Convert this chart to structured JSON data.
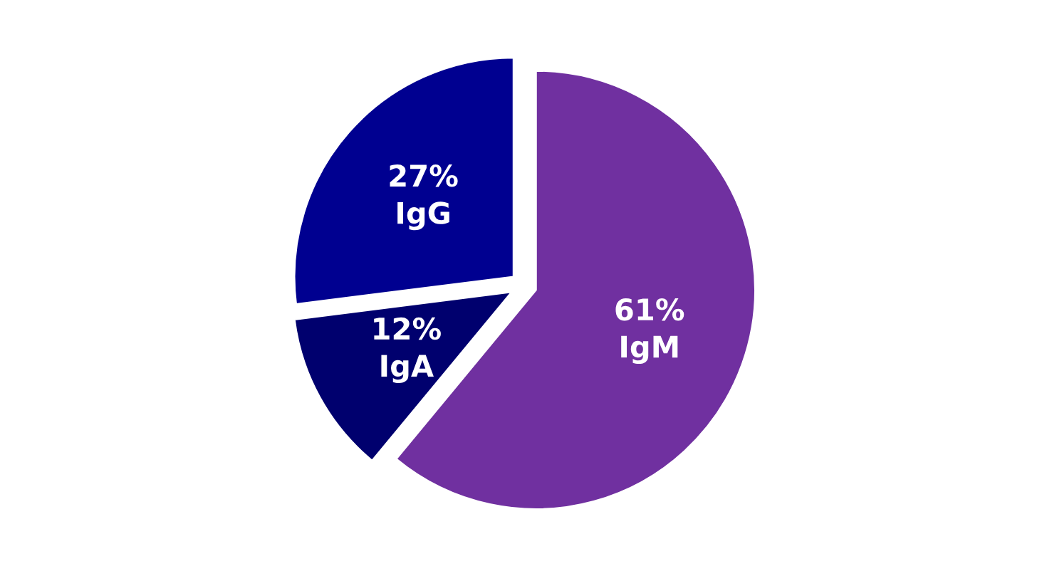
{
  "chart_data": {
    "type": "pie",
    "categories": [
      "IgM",
      "IgA",
      "IgG"
    ],
    "values": [
      61,
      12,
      27
    ],
    "colors": [
      "#7030a0",
      "#00006e",
      "#000090"
    ],
    "value_labels": [
      "61%",
      "12%",
      "27%"
    ]
  }
}
